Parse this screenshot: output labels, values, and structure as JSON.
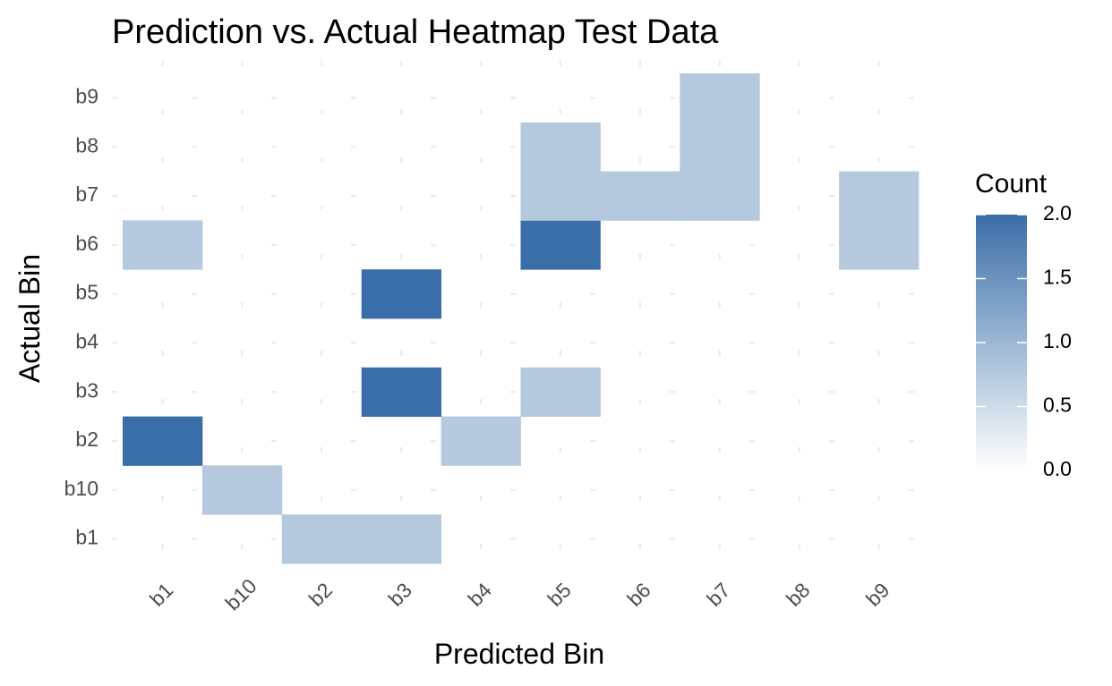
{
  "chart_data": {
    "type": "heatmap",
    "title": "Prediction vs. Actual Heatmap Test Data",
    "xlabel": "Predicted Bin",
    "ylabel": "Actual Bin",
    "x_categories": [
      "b1",
      "b10",
      "b2",
      "b3",
      "b4",
      "b5",
      "b6",
      "b7",
      "b8",
      "b9"
    ],
    "y_categories": [
      "b1",
      "b10",
      "b2",
      "b3",
      "b4",
      "b5",
      "b6",
      "b7",
      "b8",
      "b9"
    ],
    "cells": [
      {
        "x": "b2",
        "y": "b1",
        "value": 1
      },
      {
        "x": "b3",
        "y": "b1",
        "value": 1
      },
      {
        "x": "b10",
        "y": "b10",
        "value": 1
      },
      {
        "x": "b1",
        "y": "b2",
        "value": 2
      },
      {
        "x": "b4",
        "y": "b2",
        "value": 1
      },
      {
        "x": "b3",
        "y": "b3",
        "value": 2
      },
      {
        "x": "b5",
        "y": "b3",
        "value": 1
      },
      {
        "x": "b3",
        "y": "b5",
        "value": 2
      },
      {
        "x": "b1",
        "y": "b6",
        "value": 1
      },
      {
        "x": "b5",
        "y": "b6",
        "value": 2
      },
      {
        "x": "b9",
        "y": "b6",
        "value": 1
      },
      {
        "x": "b5",
        "y": "b7",
        "value": 1
      },
      {
        "x": "b6",
        "y": "b7",
        "value": 1
      },
      {
        "x": "b7",
        "y": "b7",
        "value": 1
      },
      {
        "x": "b9",
        "y": "b7",
        "value": 1
      },
      {
        "x": "b5",
        "y": "b8",
        "value": 1
      },
      {
        "x": "b7",
        "y": "b8",
        "value": 1
      },
      {
        "x": "b7",
        "y": "b9",
        "value": 1
      }
    ],
    "legend": {
      "title": "Count",
      "ticks": [
        2.0,
        1.5,
        1.0,
        0.5,
        0.0
      ],
      "tick_labels": [
        "2.0",
        "1.5",
        "1.0",
        "0.5",
        "0.0"
      ],
      "range": [
        0,
        2
      ],
      "low_color": "#ffffff",
      "high_color": "#3a6ea8",
      "placement": "right"
    },
    "grid": true
  }
}
